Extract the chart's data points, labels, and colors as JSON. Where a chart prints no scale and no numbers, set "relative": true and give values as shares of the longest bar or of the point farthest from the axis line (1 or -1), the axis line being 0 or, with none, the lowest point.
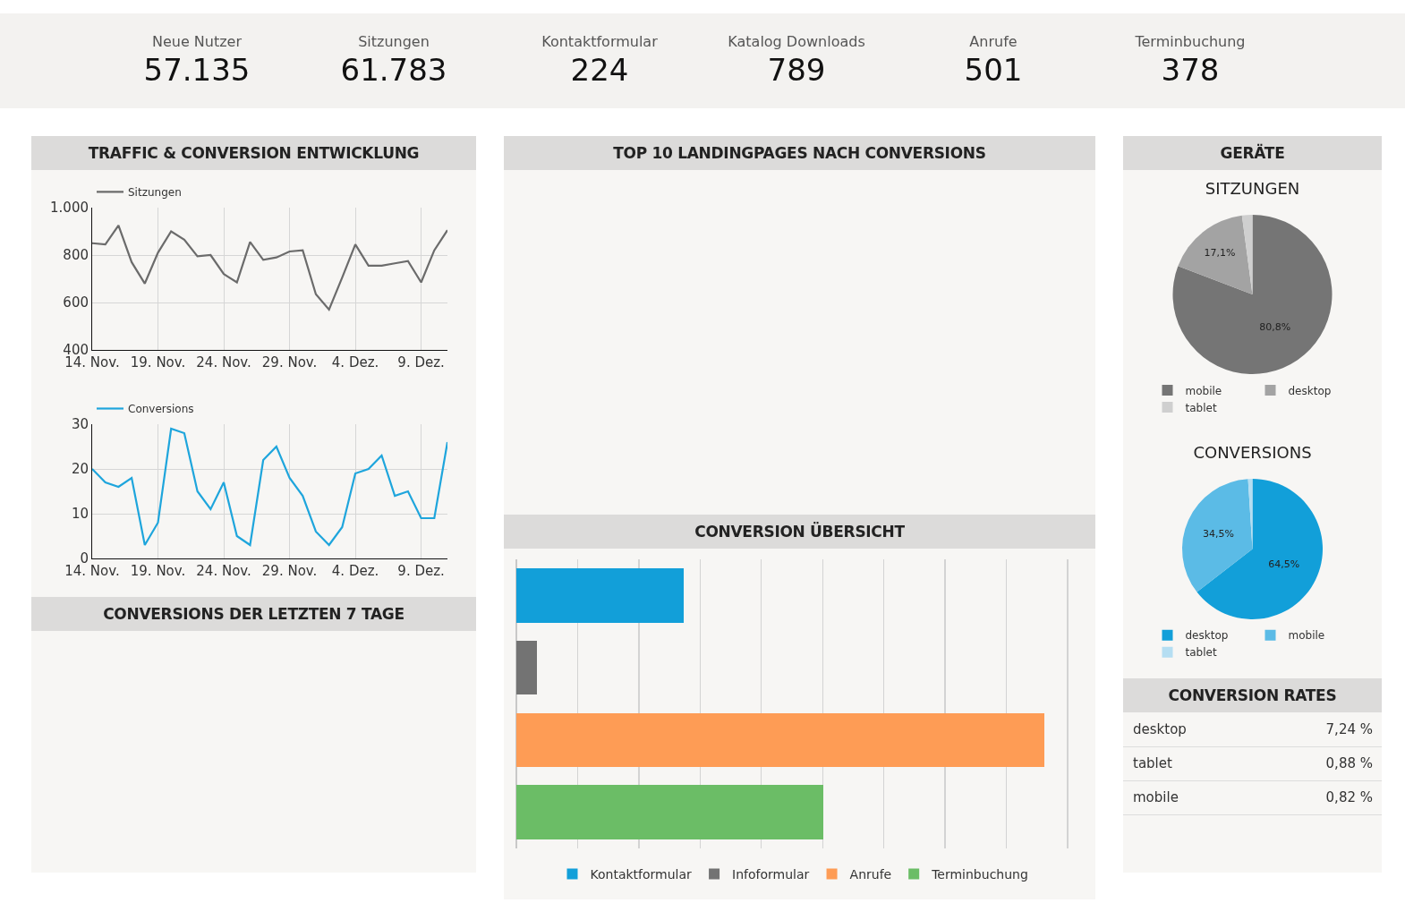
{
  "chart_data": [
    {
      "type": "other",
      "categories": [
        "Neue Nutzer",
        "Sitzungen",
        "Kontaktformular",
        "Katalog Downloads",
        "Anrufe",
        "Terminbuchung"
      ],
      "value_labels": [
        "57.135",
        "61.783",
        "224",
        "789",
        "501",
        "378"
      ]
    },
    {
      "type": "line",
      "title": "TRAFFIC & CONVERSION ENTWICKLUNG",
      "categories": [
        "14. Nov.",
        null,
        null,
        null,
        null,
        "19. Nov.",
        null,
        null,
        null,
        null,
        "24. Nov.",
        null,
        null,
        null,
        null,
        "29. Nov.",
        null,
        null,
        null,
        null,
        "4. Dez.",
        null,
        null,
        null,
        null,
        "9. Dez.",
        null,
        null
      ],
      "ylim": [
        400,
        1000
      ],
      "yticks": [
        {
          "value": 400,
          "label": "400"
        },
        {
          "value": 600,
          "label": "600"
        },
        {
          "value": 800,
          "label": "800"
        },
        {
          "value": 1000,
          "label": "1.000"
        }
      ],
      "grid": true,
      "legend": "top left",
      "series": [
        {
          "name": "Sitzungen",
          "color": "#6b6b6b",
          "values": [
            850,
            845,
            925,
            770,
            680,
            810,
            900,
            865,
            795,
            800,
            720,
            685,
            855,
            780,
            790,
            815,
            820,
            635,
            570,
            705,
            845,
            755,
            755,
            765,
            775,
            685,
            820,
            905
          ]
        }
      ]
    },
    {
      "type": "line",
      "categories": [
        "14. Nov.",
        null,
        null,
        null,
        null,
        "19. Nov.",
        null,
        null,
        null,
        null,
        "24. Nov.",
        null,
        null,
        null,
        null,
        "29. Nov.",
        null,
        null,
        null,
        null,
        "4. Dez.",
        null,
        null,
        null,
        null,
        "9. Dez.",
        null,
        null
      ],
      "ylim": [
        0,
        30
      ],
      "yticks": [
        0,
        10,
        20,
        30
      ],
      "grid": true,
      "legend": "top left",
      "series": [
        {
          "name": "Conversions",
          "color": "#1ea5dc",
          "values": [
            20,
            17,
            16,
            18,
            3,
            8,
            29,
            28,
            15,
            11,
            17,
            5,
            3,
            22,
            25,
            18,
            14,
            6,
            3,
            7,
            19,
            20,
            23,
            14,
            15,
            9,
            9,
            26
          ]
        }
      ]
    },
    {
      "type": "other",
      "title": "CONVERSIONS DER LETZTEN 7 TAGE"
    },
    {
      "type": "other",
      "title": "TOP 10 LANDINGPAGES NACH CONVERSIONS"
    },
    {
      "type": "bar",
      "title": "CONVERSION ÜBERSICHT",
      "orientation": "horizontal",
      "relative": true,
      "stacked": true,
      "grid": "x",
      "legend": "bottom",
      "categories": [
        null,
        null,
        null,
        null
      ],
      "series": [
        {
          "name": "Kontaktformular",
          "color": "#129fd9",
          "values": [
            0.317,
            null,
            null,
            null
          ]
        },
        {
          "name": "Infoformular",
          "color": "#737373",
          "values": [
            null,
            0.039,
            null,
            null
          ]
        },
        {
          "name": "Anrufe",
          "color": "#fe9c55",
          "values": [
            null,
            null,
            1,
            null
          ]
        },
        {
          "name": "Terminbuchung",
          "color": "#6bbd66",
          "values": [
            null,
            null,
            null,
            0.582
          ]
        }
      ]
    },
    {
      "type": "pie",
      "title": "GERÄTE",
      "subtitle": "SITZUNGEN",
      "categories": [
        "mobile",
        "desktop",
        "tablet"
      ],
      "values": [
        80.8,
        17.1,
        2.1
      ],
      "colors": [
        "#757575",
        "#a3a3a3",
        "#cfcfcf"
      ],
      "value_labels": [
        "80,8%",
        "17,1%",
        null
      ],
      "legend": "bottom"
    },
    {
      "type": "pie",
      "subtitle": "CONVERSIONS",
      "categories": [
        "desktop",
        "mobile",
        "tablet"
      ],
      "values": [
        64.5,
        34.5,
        1.0
      ],
      "colors": [
        "#129fd9",
        "#5bbbe6",
        "#b5def2"
      ],
      "value_labels": [
        "64,5%",
        "34,5%",
        null
      ],
      "legend": "bottom"
    },
    {
      "type": "other",
      "title": "CONVERSION RATES",
      "categories": [
        "desktop",
        "tablet",
        "mobile"
      ],
      "value_labels": [
        "7,24 %",
        "0,88 %",
        "0,82 %"
      ]
    }
  ]
}
